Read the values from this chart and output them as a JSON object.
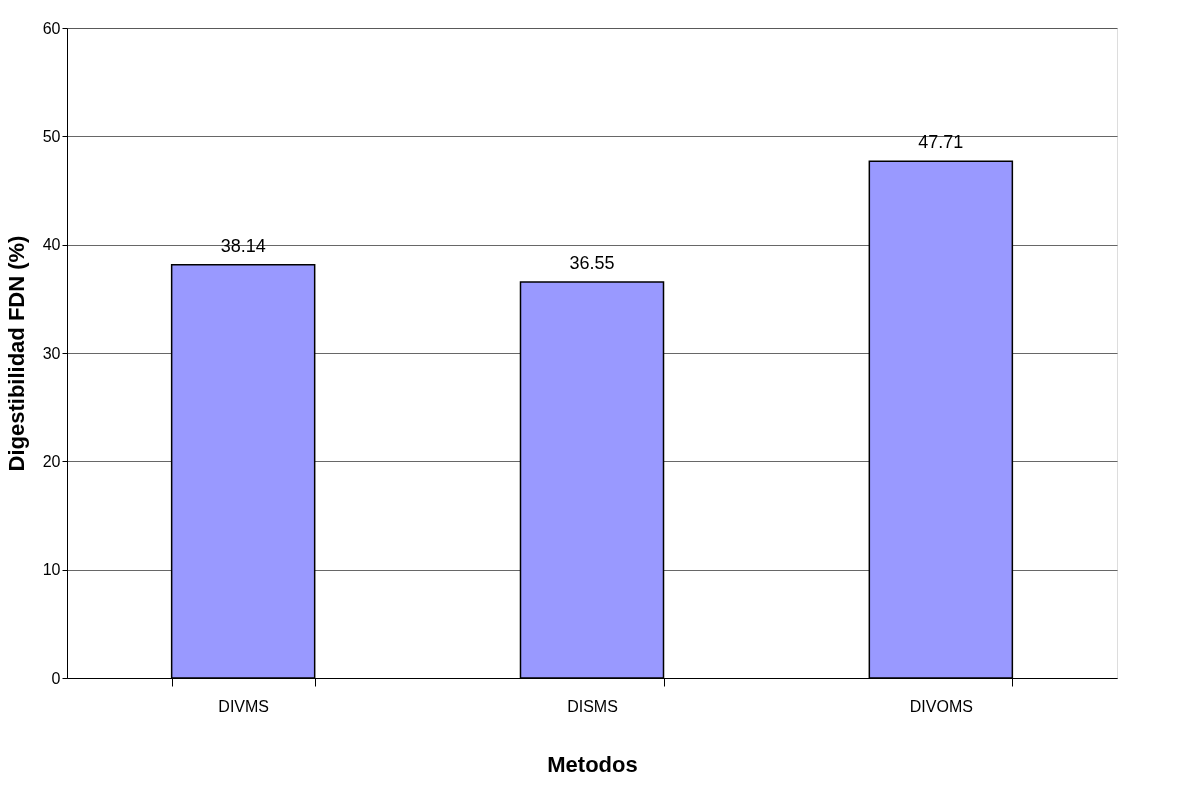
{
  "chart_data": {
    "type": "bar",
    "xlabel": "Metodos",
    "ylabel": "Digestibilidad FDN (%)",
    "categories": [
      "DIVMS",
      "DISMS",
      "DIVOMS"
    ],
    "values": [
      38.14,
      36.55,
      47.71
    ],
    "color": "#9999ff",
    "ylim": [
      0,
      60
    ],
    "yticks": [
      0,
      10,
      20,
      30,
      40,
      50,
      60
    ],
    "grid": "y",
    "data_labels": true
  }
}
